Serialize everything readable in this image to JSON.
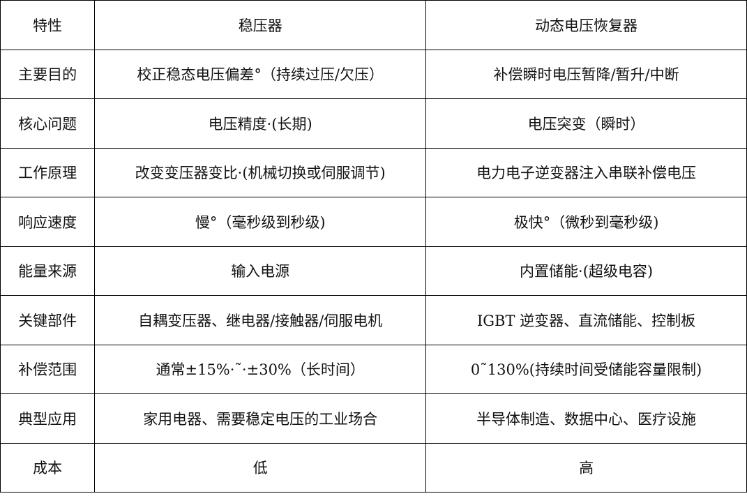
{
  "header": [
    "特性",
    "稳压器",
    "动态电压恢复器"
  ],
  "rows": [
    [
      "主要目的",
      "校正稳态电压偏差°（持续过压/欠压）",
      "补偿瞬时电压暂降/暂升/中断"
    ],
    [
      "核心问题",
      "电压精度·(长期)",
      "电压突变（瞬时）"
    ],
    [
      "工作原理",
      "改变变压器变比·(机械切换或伺服调节)",
      "电力电子逆变器注入串联补偿电压"
    ],
    [
      "响应速度",
      "慢°（毫秒级到秒级)",
      "极快°（微秒到毫秒级)"
    ],
    [
      "能量来源",
      "输入电源",
      "内置储能·(超级电容)"
    ],
    [
      "关键部件",
      "自耦变压器、继电器/接触器/伺服电机",
      "IGBT 逆变器、直流储能、控制板"
    ],
    [
      "补偿范围",
      "通常±15%·˜·±30%（长时间）",
      "0˜130%(持续时间受储能容量限制)"
    ],
    [
      "典型应用",
      "家用电器、需要稳定电压的工业场合",
      "半导体制造、数据中心、医疗设施"
    ],
    [
      "成本",
      "低",
      "高"
    ]
  ]
}
